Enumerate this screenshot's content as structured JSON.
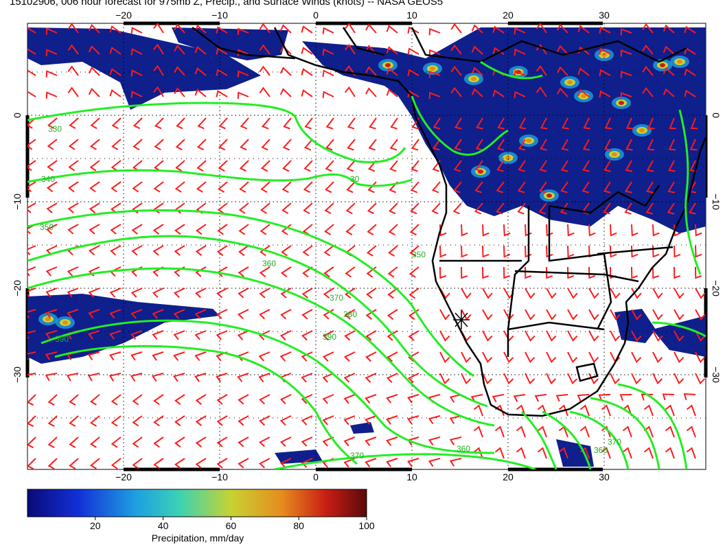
{
  "title": "15102906, 006 hour forecast for 975mb Z, Precip., and Surface Winds (knots) -- NASA GEOS5",
  "lon_ticks": [
    "−20",
    "−10",
    "0",
    "10",
    "20",
    "30"
  ],
  "lat_ticks": [
    "0",
    "−10",
    "−20",
    "−30"
  ],
  "contour_labels": [
    "330",
    "340",
    "350",
    "360",
    "370",
    "380",
    "390",
    "30"
  ],
  "colorbar": {
    "title": "Precipitation, mm/day",
    "ticks": [
      "20",
      "40",
      "60",
      "80",
      "100"
    ],
    "colors": [
      "#0a0a78",
      "#1230d8",
      "#1ea0e0",
      "#3cd2b4",
      "#c8d232",
      "#e68c1e",
      "#c81e14",
      "#5a0a0a"
    ]
  },
  "colors": {
    "wind_barb": "#ff1a1a",
    "height_contour": "#22ee22",
    "coastline": "#000000",
    "precip_low": "#0f1f8c"
  },
  "marker": "station-asterisk"
}
